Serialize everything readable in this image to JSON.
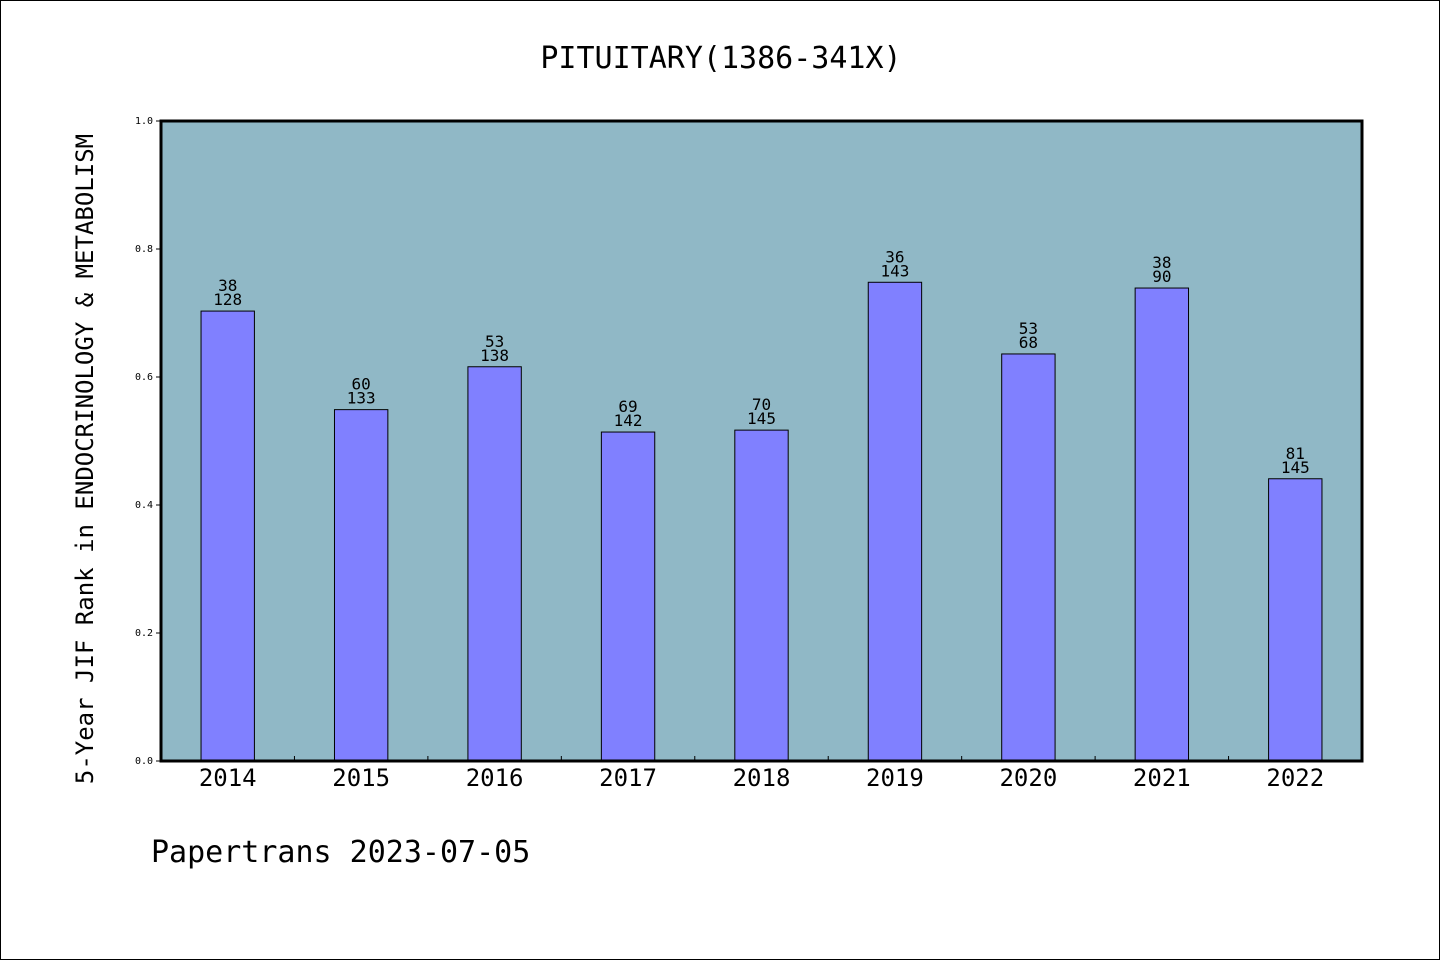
{
  "footer": "Papertrans 2023-07-05",
  "colors": {
    "plot_background": "#90b8c6",
    "bar_fill": "#8080ff",
    "bar_stroke": "#000000",
    "text": "#000000"
  },
  "chart_data": {
    "type": "bar",
    "title": "PITUITARY(1386-341X)",
    "xlabel": "",
    "ylabel": "5-Year JIF Rank in ENDOCRINOLOGY & METABOLISM",
    "categories": [
      "2014",
      "2015",
      "2016",
      "2017",
      "2018",
      "2019",
      "2020",
      "2021",
      "2022"
    ],
    "values": [
      0.703,
      0.549,
      0.616,
      0.514,
      0.517,
      0.748,
      0.636,
      0.739,
      0.441
    ],
    "rank": [
      38,
      60,
      53,
      69,
      70,
      36,
      53,
      38,
      81
    ],
    "total": [
      128,
      133,
      138,
      142,
      145,
      143,
      68,
      90,
      145
    ],
    "ylim": [
      0,
      1.0
    ],
    "yticks": [
      "0.0",
      "0.2",
      "0.4",
      "0.6",
      "0.8",
      "1.0"
    ],
    "grid": false,
    "legend": "none"
  }
}
